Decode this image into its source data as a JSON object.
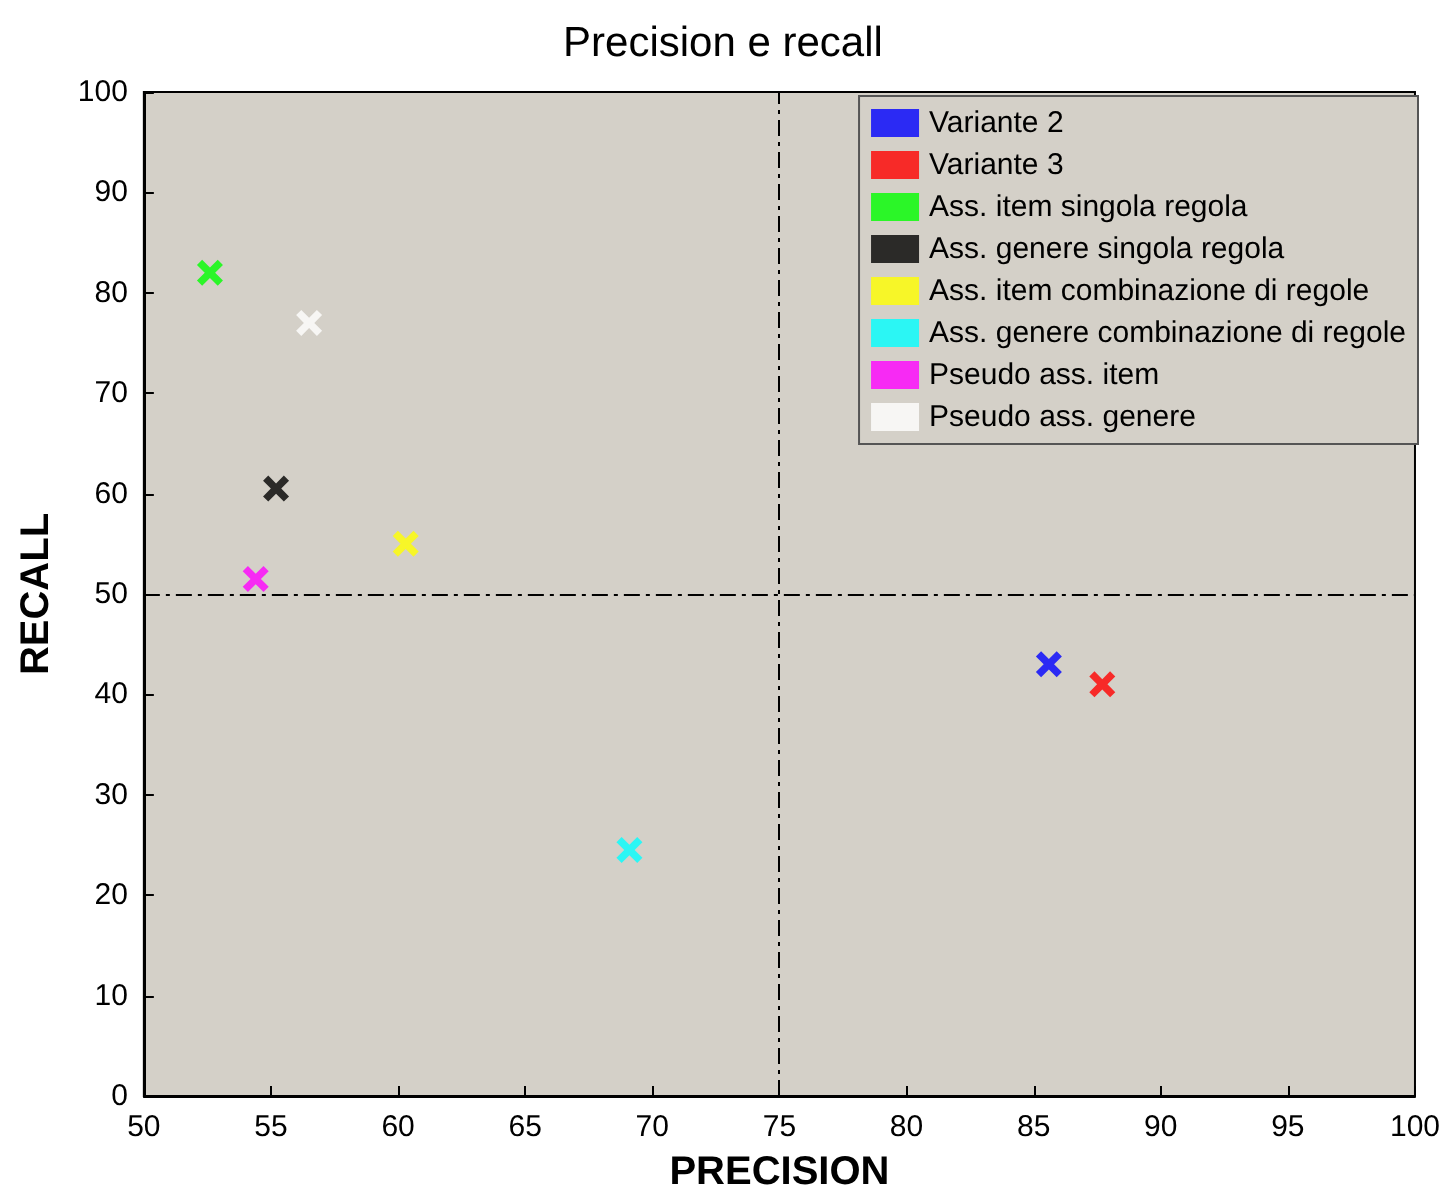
{
  "chart_data": {
    "type": "scatter",
    "title": "Precision e recall",
    "xlabel": "PRECISION",
    "ylabel": "RECALL",
    "xlim": [
      50,
      100
    ],
    "xticks": [
      50,
      55,
      60,
      65,
      70,
      75,
      80,
      85,
      90,
      95,
      100
    ],
    "ylim": [
      0,
      100
    ],
    "yticks": [
      0,
      10,
      20,
      30,
      40,
      50,
      60,
      70,
      80,
      90,
      100
    ],
    "grid": false,
    "legend": "top right",
    "marker": "cross",
    "ref_lines": [
      {
        "axis": "x",
        "value": 75,
        "line_style": "dashdot",
        "color": "#000000"
      },
      {
        "axis": "y",
        "value": 50,
        "line_style": "dashdot",
        "color": "#000000"
      }
    ],
    "series": [
      {
        "name": "Variante 2",
        "color": "#0000ff",
        "x": [
          85.6
        ],
        "values": [
          43
        ]
      },
      {
        "name": "Variante 3",
        "color": "#ff0000",
        "x": [
          87.7
        ],
        "values": [
          41
        ]
      },
      {
        "name": "Ass. item singola regola",
        "color": "#00ff00",
        "x": [
          52.6
        ],
        "values": [
          82
        ]
      },
      {
        "name": "Ass. genere singola regola",
        "color": "#000000",
        "x": [
          55.2
        ],
        "values": [
          60.5
        ]
      },
      {
        "name": "Ass. item combinazione di regole",
        "color": "#ffff00",
        "x": [
          60.3
        ],
        "values": [
          55
        ]
      },
      {
        "name": "Ass. genere combinazione di regole",
        "color": "#00ffff",
        "x": [
          69.1
        ],
        "values": [
          24.5
        ]
      },
      {
        "name": "Pseudo ass. item",
        "color": "#ff00ff",
        "x": [
          54.4
        ],
        "values": [
          51.5
        ]
      },
      {
        "name": "Pseudo ass. genere",
        "color": "#ffffff",
        "x": [
          56.5
        ],
        "values": [
          77
        ]
      }
    ]
  }
}
